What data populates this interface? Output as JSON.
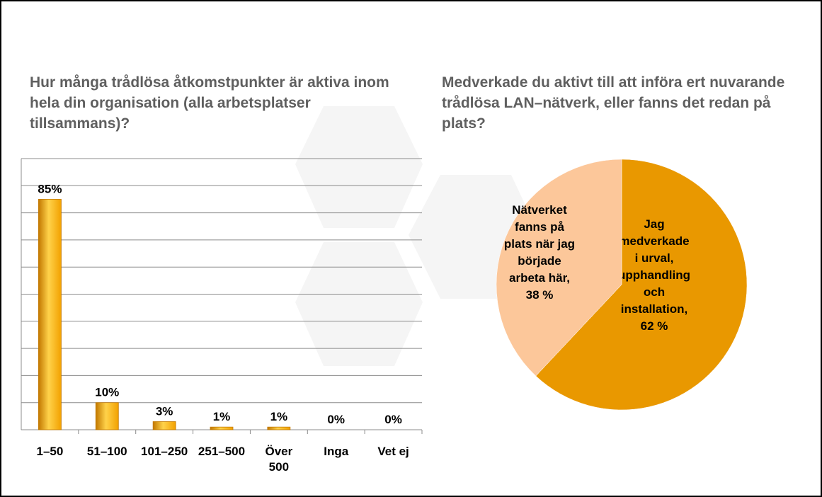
{
  "colors": {
    "bar_fill": "#f2a100",
    "bar_highlight": "#ffd24a",
    "bar_dark": "#c27800",
    "pie_main": "#e99800",
    "pie_light": "#fcc79a",
    "grid": "#8c8c8c",
    "title_text": "#5f5f5f",
    "label_text": "#000000",
    "watermark": "#f4f4f4"
  },
  "chart_data": [
    {
      "type": "bar",
      "title": "Hur många trådlösa åtkomstpunkter är aktiva inom hela din organisation (alla arbetsplatser tillsammans)?",
      "categories": [
        "1–50",
        "51–100",
        "101–250",
        "251–500",
        "Över 500",
        "Inga",
        "Vet ej"
      ],
      "category_lines": [
        [
          "1–50"
        ],
        [
          "51–100"
        ],
        [
          "101–250"
        ],
        [
          "251–500"
        ],
        [
          "Över",
          "500"
        ],
        [
          "Inga"
        ],
        [
          "Vet ej"
        ]
      ],
      "values": [
        85,
        10,
        3,
        1,
        1,
        0,
        0
      ],
      "labels": [
        "85%",
        "10%",
        "3%",
        "1%",
        "1%",
        "0%",
        "0%"
      ],
      "unit": "%",
      "ylim": [
        0,
        100
      ],
      "grid": true,
      "xlabel": "",
      "ylabel": ""
    },
    {
      "type": "pie",
      "title": "Medverkade du aktivt till att införa ert nuvarande trådlösa LAN–nätverk, eller fanns det redan på plats?",
      "slices": [
        {
          "label": "Jag medverkade i urval, upphandling och installation, 62 %",
          "lines": [
            "Jag",
            "medverkade",
            "i urval,",
            "upphandling",
            "och",
            "installation,",
            "62 %"
          ],
          "value": 62,
          "color_key": "pie_main"
        },
        {
          "label": "Nätverket fanns på plats när jag började arbeta här, 38 %",
          "lines": [
            "Nätverket",
            "fanns på",
            "plats när jag",
            "började",
            "arbeta här,",
            "38 %"
          ],
          "value": 38,
          "color_key": "pie_light"
        }
      ]
    }
  ]
}
